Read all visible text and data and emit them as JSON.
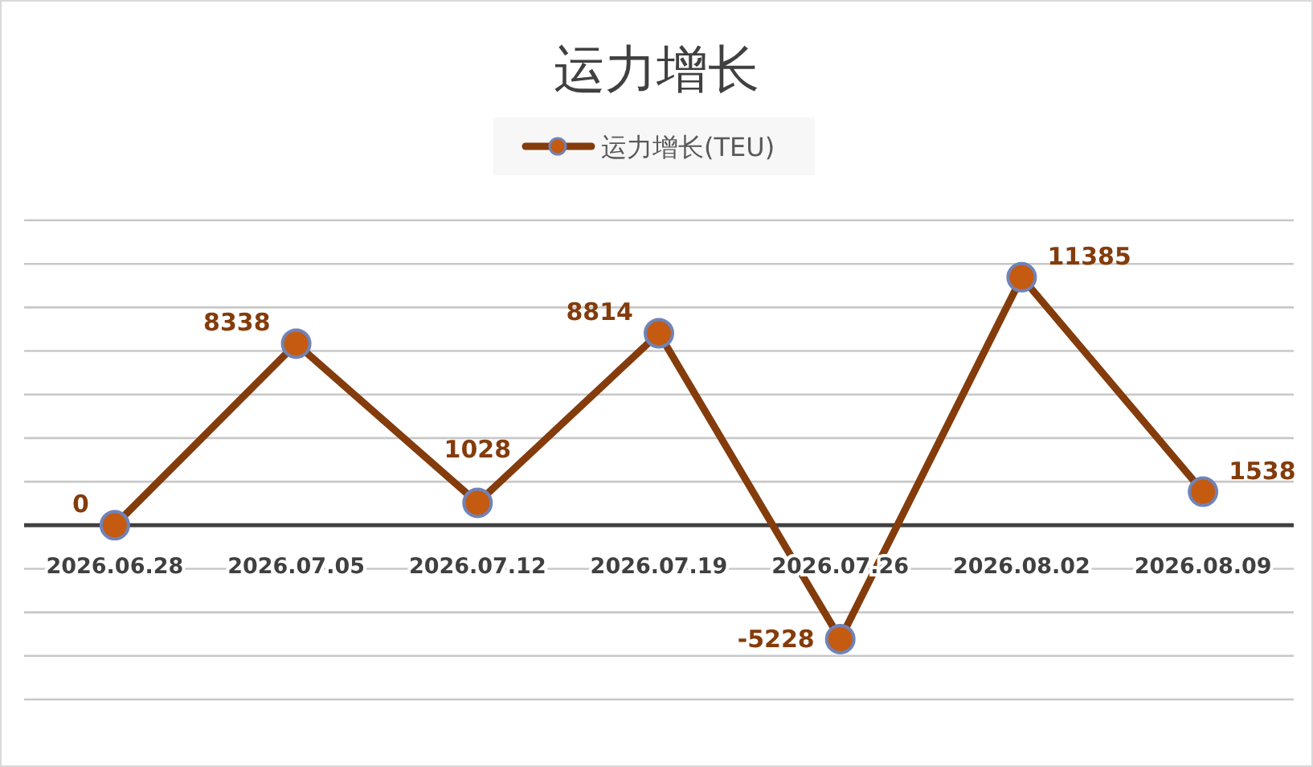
{
  "chart_data": {
    "type": "line",
    "title": "运力增长",
    "categories": [
      "2026.06.28",
      "2026.07.05",
      "2026.07.12",
      "2026.07.19",
      "2026.07.26",
      "2026.08.02",
      "2026.08.09"
    ],
    "series": [
      {
        "name": "运力增长(TEU)",
        "color": "#843c0c",
        "values": [
          0,
          8338,
          1028,
          8814,
          -5228,
          11385,
          1538
        ]
      }
    ],
    "ylim": [
      -8000,
      14000
    ],
    "yticks": [
      {
        "value": -8000,
        "label": null
      },
      {
        "value": -6000,
        "label": null
      },
      {
        "value": -4000,
        "label": null
      },
      {
        "value": -2000,
        "label": null
      },
      {
        "value": 0,
        "label": null
      },
      {
        "value": 2000,
        "label": null
      },
      {
        "value": 4000,
        "label": null
      },
      {
        "value": 6000,
        "label": null
      },
      {
        "value": 8000,
        "label": null
      },
      {
        "value": 10000,
        "label": null
      },
      {
        "value": 12000,
        "label": null
      },
      {
        "value": 14000,
        "label": null
      }
    ],
    "tick_labels": "x",
    "grid": "y",
    "legend": "top",
    "marker": "circle",
    "line_style": "solid",
    "data_labels": true
  }
}
